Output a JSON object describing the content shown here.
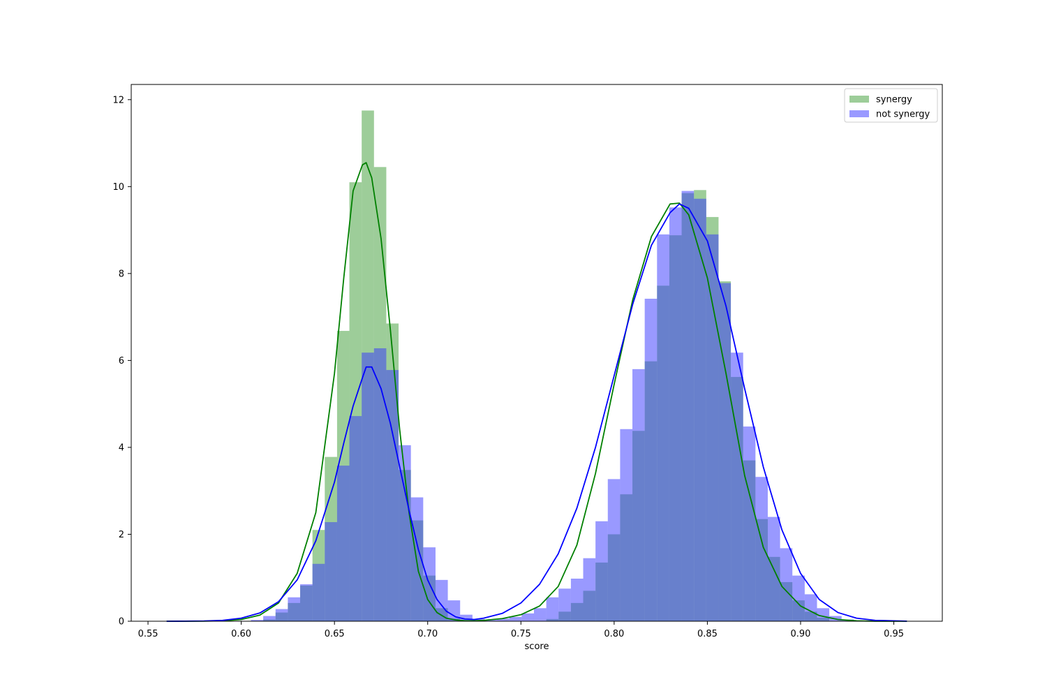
{
  "chart_data": {
    "type": "bar",
    "kind": "histogram with density curves",
    "xlabel": "score",
    "ylabel": "",
    "xlim": [
      0.541,
      0.976
    ],
    "ylim": [
      0,
      12.35
    ],
    "grid": false,
    "legend_position": "top-right",
    "x_ticks": [
      "0.55",
      "0.60",
      "0.65",
      "0.70",
      "0.75",
      "0.80",
      "0.85",
      "0.90",
      "0.95"
    ],
    "x_tick_values": [
      0.55,
      0.6,
      0.65,
      0.7,
      0.75,
      0.8,
      0.85,
      0.9,
      0.95
    ],
    "y_ticks": [
      "0",
      "2",
      "4",
      "6",
      "8",
      "10",
      "12"
    ],
    "y_tick_values": [
      0,
      2,
      4,
      6,
      8,
      10,
      12
    ],
    "series": [
      {
        "name": "synergy",
        "bar_color": "#3b9b34",
        "bar_opacity": 0.5,
        "line_color": "#008000",
        "histogram": {
          "bin_width": 0.0066,
          "bins": [
            [
              0.6118,
              0.04
            ],
            [
              0.6184,
              0.2
            ],
            [
              0.625,
              0.42
            ],
            [
              0.6316,
              0.82
            ],
            [
              0.6382,
              2.1
            ],
            [
              0.6448,
              3.78
            ],
            [
              0.6514,
              6.68
            ],
            [
              0.658,
              10.1
            ],
            [
              0.6646,
              11.75
            ],
            [
              0.6712,
              10.45
            ],
            [
              0.6778,
              6.85
            ],
            [
              0.6844,
              3.48
            ],
            [
              0.691,
              2.32
            ],
            [
              0.6976,
              1.05
            ],
            [
              0.7042,
              0.3
            ],
            [
              0.7108,
              0.06
            ],
            [
              0.7636,
              0.05
            ],
            [
              0.7702,
              0.22
            ],
            [
              0.7768,
              0.42
            ],
            [
              0.7834,
              0.7
            ],
            [
              0.79,
              1.35
            ],
            [
              0.7966,
              2.0
            ],
            [
              0.8032,
              2.92
            ],
            [
              0.8098,
              4.38
            ],
            [
              0.8164,
              5.98
            ],
            [
              0.823,
              7.72
            ],
            [
              0.8296,
              8.88
            ],
            [
              0.8362,
              9.85
            ],
            [
              0.8428,
              9.92
            ],
            [
              0.8494,
              9.3
            ],
            [
              0.856,
              7.82
            ],
            [
              0.8626,
              5.62
            ],
            [
              0.8692,
              3.7
            ],
            [
              0.8758,
              2.35
            ],
            [
              0.8824,
              1.48
            ],
            [
              0.889,
              0.9
            ],
            [
              0.8956,
              0.48
            ],
            [
              0.9022,
              0.22
            ],
            [
              0.9088,
              0.08
            ]
          ]
        },
        "density_curve": {
          "x": [
            0.56,
            0.57,
            0.58,
            0.59,
            0.6,
            0.61,
            0.62,
            0.63,
            0.64,
            0.65,
            0.655,
            0.66,
            0.665,
            0.667,
            0.67,
            0.675,
            0.68,
            0.685,
            0.69,
            0.695,
            0.7,
            0.705,
            0.71,
            0.715,
            0.72,
            0.725,
            0.73,
            0.74,
            0.75,
            0.76,
            0.77,
            0.78,
            0.79,
            0.8,
            0.81,
            0.82,
            0.83,
            0.835,
            0.84,
            0.85,
            0.86,
            0.87,
            0.88,
            0.89,
            0.9,
            0.91,
            0.92,
            0.93,
            0.94,
            0.957
          ],
          "y": [
            0,
            0,
            0.002,
            0.01,
            0.04,
            0.14,
            0.42,
            1.1,
            2.5,
            5.7,
            7.9,
            9.9,
            10.5,
            10.55,
            10.2,
            8.8,
            6.7,
            4.4,
            2.5,
            1.15,
            0.5,
            0.2,
            0.07,
            0.03,
            0.01,
            0.01,
            0.02,
            0.06,
            0.15,
            0.35,
            0.8,
            1.75,
            3.4,
            5.45,
            7.4,
            8.85,
            9.6,
            9.62,
            9.35,
            7.9,
            5.7,
            3.35,
            1.7,
            0.8,
            0.35,
            0.13,
            0.04,
            0.01,
            0,
            0
          ]
        }
      },
      {
        "name": "not synergy",
        "bar_color": "#3333ff",
        "bar_opacity": 0.5,
        "line_color": "#0000ff",
        "histogram": {
          "bin_width": 0.0066,
          "bins": [
            [
              0.6052,
              0.03
            ],
            [
              0.6118,
              0.12
            ],
            [
              0.6184,
              0.28
            ],
            [
              0.625,
              0.55
            ],
            [
              0.6316,
              0.85
            ],
            [
              0.6382,
              1.32
            ],
            [
              0.6448,
              2.28
            ],
            [
              0.6514,
              3.58
            ],
            [
              0.658,
              4.72
            ],
            [
              0.6646,
              6.18
            ],
            [
              0.6712,
              6.28
            ],
            [
              0.6778,
              5.78
            ],
            [
              0.6844,
              4.05
            ],
            [
              0.691,
              2.85
            ],
            [
              0.6976,
              1.7
            ],
            [
              0.7042,
              0.95
            ],
            [
              0.7108,
              0.48
            ],
            [
              0.7174,
              0.15
            ],
            [
              0.724,
              0.05
            ],
            [
              0.7306,
              0.03
            ],
            [
              0.7372,
              0.06
            ],
            [
              0.7438,
              0.1
            ],
            [
              0.7504,
              0.18
            ],
            [
              0.757,
              0.3
            ],
            [
              0.7636,
              0.55
            ],
            [
              0.7702,
              0.75
            ],
            [
              0.7768,
              0.98
            ],
            [
              0.7834,
              1.45
            ],
            [
              0.79,
              2.3
            ],
            [
              0.7966,
              3.27
            ],
            [
              0.8032,
              4.42
            ],
            [
              0.8098,
              5.8
            ],
            [
              0.8164,
              7.42
            ],
            [
              0.823,
              8.9
            ],
            [
              0.8296,
              9.52
            ],
            [
              0.8362,
              9.9
            ],
            [
              0.8428,
              9.72
            ],
            [
              0.8494,
              8.9
            ],
            [
              0.856,
              7.78
            ],
            [
              0.8626,
              6.18
            ],
            [
              0.8692,
              4.48
            ],
            [
              0.8758,
              3.32
            ],
            [
              0.8824,
              2.4
            ],
            [
              0.889,
              1.68
            ],
            [
              0.8956,
              1.05
            ],
            [
              0.9022,
              0.62
            ],
            [
              0.9088,
              0.3
            ],
            [
              0.9154,
              0.12
            ],
            [
              0.922,
              0.04
            ]
          ]
        },
        "density_curve": {
          "x": [
            0.56,
            0.57,
            0.58,
            0.59,
            0.6,
            0.61,
            0.62,
            0.63,
            0.64,
            0.65,
            0.655,
            0.66,
            0.665,
            0.667,
            0.67,
            0.675,
            0.68,
            0.685,
            0.69,
            0.695,
            0.7,
            0.705,
            0.71,
            0.715,
            0.72,
            0.725,
            0.73,
            0.74,
            0.75,
            0.76,
            0.77,
            0.78,
            0.79,
            0.8,
            0.81,
            0.82,
            0.83,
            0.835,
            0.84,
            0.85,
            0.86,
            0.87,
            0.88,
            0.89,
            0.9,
            0.91,
            0.92,
            0.93,
            0.94,
            0.957
          ],
          "y": [
            0,
            0.002,
            0.006,
            0.02,
            0.07,
            0.19,
            0.45,
            0.95,
            1.85,
            3.2,
            4.1,
            4.95,
            5.6,
            5.85,
            5.85,
            5.35,
            4.55,
            3.55,
            2.55,
            1.65,
            0.95,
            0.5,
            0.23,
            0.1,
            0.05,
            0.04,
            0.07,
            0.18,
            0.42,
            0.85,
            1.55,
            2.6,
            4.0,
            5.65,
            7.3,
            8.65,
            9.4,
            9.6,
            9.5,
            8.75,
            7.25,
            5.35,
            3.55,
            2.1,
            1.1,
            0.5,
            0.2,
            0.07,
            0.02,
            0.002
          ]
        }
      }
    ]
  }
}
